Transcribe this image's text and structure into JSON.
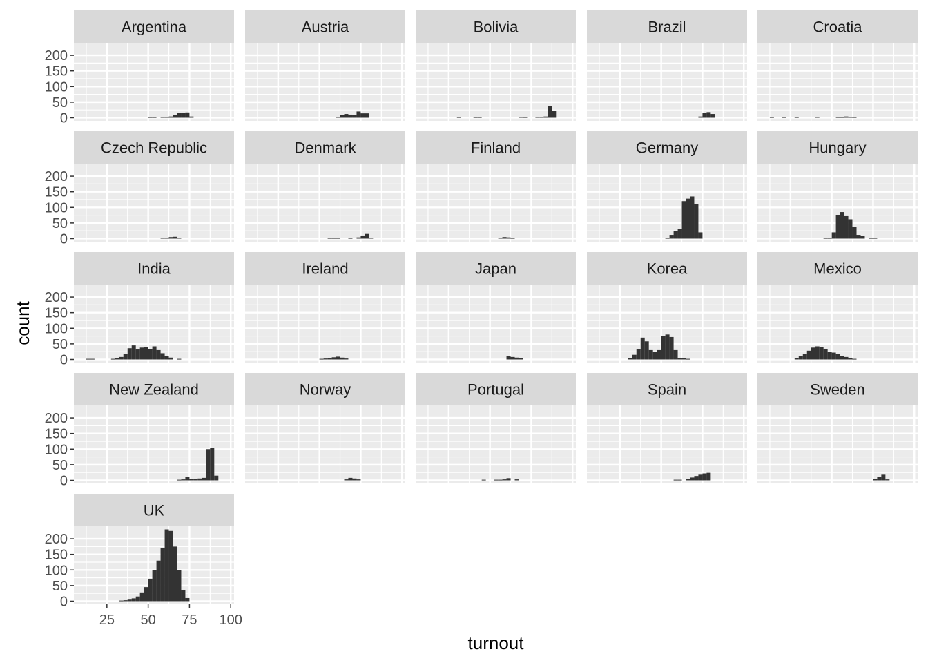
{
  "chart_data": {
    "type": "histogram",
    "layout": "facet-wrap",
    "xlabel": "turnout",
    "ylabel": "count",
    "xlim": [
      5,
      102
    ],
    "ylim": [
      -10,
      240
    ],
    "xticks": [
      25,
      50,
      75,
      100
    ],
    "yticks": [
      0,
      50,
      100,
      150,
      200
    ],
    "bin_width": 2.5,
    "grid": true,
    "colors": {
      "panel": "#ebebeb",
      "strip": "#d9d9d9",
      "grid": "#ffffff",
      "bar": "#333333"
    },
    "panels": [
      {
        "name": "Argentina",
        "bins": [
          [
            50,
            2
          ],
          [
            52.5,
            2
          ],
          [
            57.5,
            3
          ],
          [
            60,
            3
          ],
          [
            62.5,
            4
          ],
          [
            65,
            8
          ],
          [
            67.5,
            15
          ],
          [
            70,
            16
          ],
          [
            72.5,
            17
          ],
          [
            75,
            4
          ]
        ]
      },
      {
        "name": "Austria",
        "bins": [
          [
            60,
            3
          ],
          [
            62.5,
            8
          ],
          [
            65,
            12
          ],
          [
            67.5,
            10
          ],
          [
            70,
            8
          ],
          [
            72.5,
            20
          ],
          [
            75,
            14
          ],
          [
            77.5,
            14
          ]
        ]
      },
      {
        "name": "Bolivia",
        "bins": [
          [
            30,
            2
          ],
          [
            40,
            2
          ],
          [
            42.5,
            2
          ],
          [
            67.5,
            3
          ],
          [
            70,
            2
          ],
          [
            77.5,
            3
          ],
          [
            80,
            3
          ],
          [
            82.5,
            4
          ],
          [
            85,
            38
          ],
          [
            87.5,
            22
          ]
        ]
      },
      {
        "name": "Brazil",
        "bins": [
          [
            72.5,
            4
          ],
          [
            75,
            15
          ],
          [
            77.5,
            18
          ],
          [
            80,
            12
          ]
        ]
      },
      {
        "name": "Croatia",
        "bins": [
          [
            12.5,
            2
          ],
          [
            20,
            2
          ],
          [
            27.5,
            2
          ],
          [
            40,
            3
          ],
          [
            52.5,
            2
          ],
          [
            55,
            2
          ],
          [
            57.5,
            4
          ],
          [
            60,
            3
          ],
          [
            62.5,
            2
          ]
        ]
      },
      {
        "name": "Czech Republic",
        "bins": [
          [
            57.5,
            3
          ],
          [
            60,
            3
          ],
          [
            62.5,
            5
          ],
          [
            65,
            6
          ],
          [
            67.5,
            3
          ]
        ]
      },
      {
        "name": "Denmark",
        "bins": [
          [
            55,
            2
          ],
          [
            57.5,
            2
          ],
          [
            60,
            2
          ],
          [
            67.5,
            2
          ],
          [
            72.5,
            4
          ],
          [
            75,
            10
          ],
          [
            77.5,
            15
          ],
          [
            80,
            3
          ]
        ]
      },
      {
        "name": "Finland",
        "bins": [
          [
            55,
            3
          ],
          [
            57.5,
            5
          ],
          [
            60,
            4
          ],
          [
            62.5,
            2
          ]
        ]
      },
      {
        "name": "Germany",
        "bins": [
          [
            52.5,
            2
          ],
          [
            55,
            12
          ],
          [
            57.5,
            25
          ],
          [
            60,
            30
          ],
          [
            62.5,
            120
          ],
          [
            65,
            128
          ],
          [
            67.5,
            135
          ],
          [
            70,
            110
          ],
          [
            72.5,
            20
          ]
        ]
      },
      {
        "name": "Hungary",
        "bins": [
          [
            45,
            2
          ],
          [
            47.5,
            2
          ],
          [
            50,
            20
          ],
          [
            52.5,
            75
          ],
          [
            55,
            85
          ],
          [
            57.5,
            72
          ],
          [
            60,
            62
          ],
          [
            62.5,
            38
          ],
          [
            65,
            12
          ],
          [
            67.5,
            8
          ],
          [
            72.5,
            2
          ],
          [
            75,
            2
          ]
        ]
      },
      {
        "name": "India",
        "bins": [
          [
            12.5,
            2
          ],
          [
            15,
            2
          ],
          [
            27.5,
            2
          ],
          [
            30,
            5
          ],
          [
            32.5,
            8
          ],
          [
            35,
            18
          ],
          [
            37.5,
            36
          ],
          [
            40,
            45
          ],
          [
            42.5,
            32
          ],
          [
            45,
            38
          ],
          [
            47.5,
            40
          ],
          [
            50,
            34
          ],
          [
            52.5,
            42
          ],
          [
            55,
            30
          ],
          [
            57.5,
            20
          ],
          [
            60,
            12
          ],
          [
            62.5,
            6
          ],
          [
            67.5,
            2
          ]
        ]
      },
      {
        "name": "Ireland",
        "bins": [
          [
            50,
            2
          ],
          [
            52.5,
            3
          ],
          [
            55,
            5
          ],
          [
            57.5,
            7
          ],
          [
            60,
            9
          ],
          [
            62.5,
            6
          ],
          [
            65,
            3
          ]
        ]
      },
      {
        "name": "Japan",
        "bins": [
          [
            60,
            10
          ],
          [
            62.5,
            8
          ],
          [
            65,
            6
          ],
          [
            67.5,
            4
          ]
        ]
      },
      {
        "name": "Korea",
        "bins": [
          [
            30,
            4
          ],
          [
            32.5,
            15
          ],
          [
            35,
            32
          ],
          [
            37.5,
            70
          ],
          [
            40,
            58
          ],
          [
            42.5,
            30
          ],
          [
            45,
            25
          ],
          [
            47.5,
            30
          ],
          [
            50,
            75
          ],
          [
            52.5,
            80
          ],
          [
            55,
            72
          ],
          [
            57.5,
            30
          ],
          [
            60,
            5
          ],
          [
            62.5,
            4
          ],
          [
            65,
            2
          ]
        ]
      },
      {
        "name": "Mexico",
        "bins": [
          [
            27.5,
            5
          ],
          [
            30,
            12
          ],
          [
            32.5,
            18
          ],
          [
            35,
            28
          ],
          [
            37.5,
            38
          ],
          [
            40,
            42
          ],
          [
            42.5,
            40
          ],
          [
            45,
            34
          ],
          [
            47.5,
            25
          ],
          [
            50,
            22
          ],
          [
            52.5,
            18
          ],
          [
            55,
            12
          ],
          [
            57.5,
            8
          ],
          [
            60,
            5
          ],
          [
            62.5,
            2
          ]
        ]
      },
      {
        "name": "New Zealand",
        "bins": [
          [
            67.5,
            2
          ],
          [
            70,
            3
          ],
          [
            72.5,
            10
          ],
          [
            75,
            5
          ],
          [
            77.5,
            5
          ],
          [
            80,
            6
          ],
          [
            82.5,
            8
          ],
          [
            85,
            100
          ],
          [
            87.5,
            105
          ],
          [
            90,
            15
          ]
        ]
      },
      {
        "name": "Norway",
        "bins": [
          [
            65,
            3
          ],
          [
            67.5,
            8
          ],
          [
            70,
            6
          ],
          [
            72.5,
            3
          ]
        ]
      },
      {
        "name": "Portugal",
        "bins": [
          [
            45,
            2
          ],
          [
            52.5,
            2
          ],
          [
            55,
            2
          ],
          [
            57.5,
            3
          ],
          [
            60,
            7
          ],
          [
            65,
            3
          ]
        ]
      },
      {
        "name": "Spain",
        "bins": [
          [
            57.5,
            2
          ],
          [
            60,
            2
          ],
          [
            65,
            5
          ],
          [
            67.5,
            9
          ],
          [
            70,
            14
          ],
          [
            72.5,
            18
          ],
          [
            75,
            22
          ],
          [
            77.5,
            24
          ]
        ]
      },
      {
        "name": "Sweden",
        "bins": [
          [
            75,
            4
          ],
          [
            77.5,
            12
          ],
          [
            80,
            18
          ],
          [
            82.5,
            3
          ]
        ]
      },
      {
        "name": "UK",
        "bins": [
          [
            32.5,
            2
          ],
          [
            35,
            3
          ],
          [
            37.5,
            5
          ],
          [
            40,
            9
          ],
          [
            42.5,
            15
          ],
          [
            45,
            28
          ],
          [
            47.5,
            45
          ],
          [
            50,
            72
          ],
          [
            52.5,
            100
          ],
          [
            55,
            130
          ],
          [
            57.5,
            170
          ],
          [
            60,
            230
          ],
          [
            62.5,
            225
          ],
          [
            65,
            175
          ],
          [
            67.5,
            100
          ],
          [
            70,
            35
          ],
          [
            72.5,
            10
          ]
        ]
      }
    ]
  }
}
